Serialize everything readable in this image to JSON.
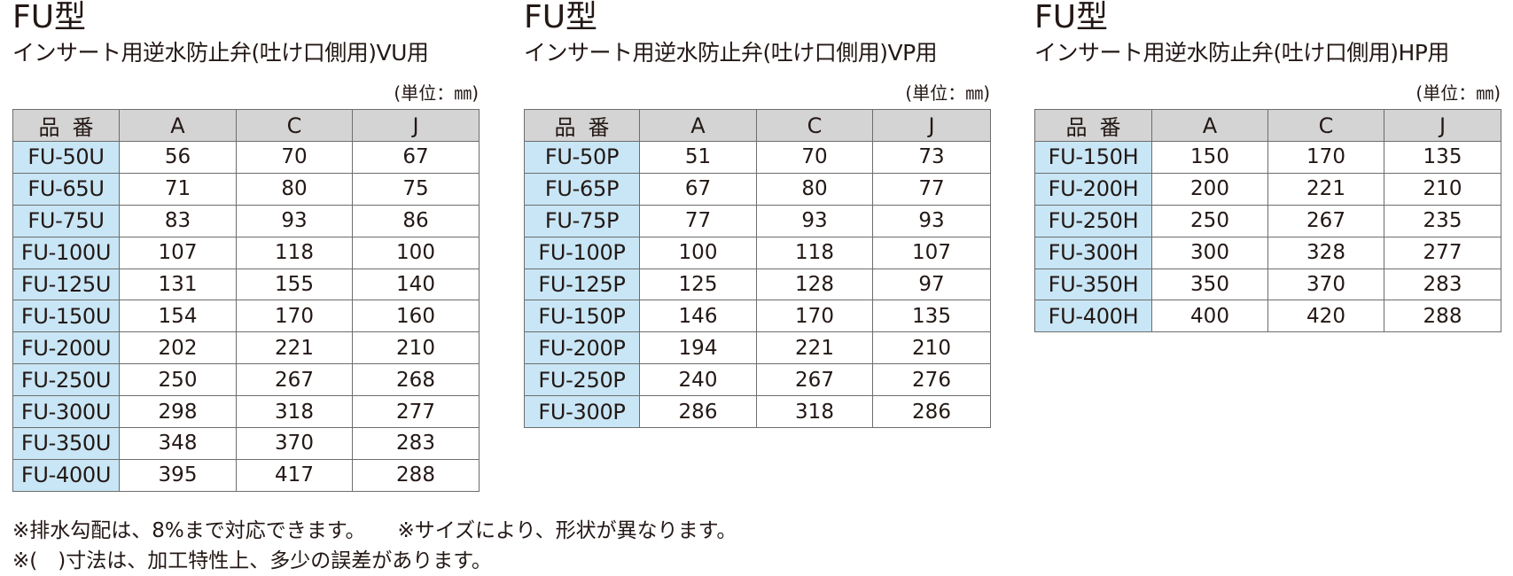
{
  "tables": [
    {
      "title": "FU型",
      "subtitle": "インサート用逆水防止弁(吐け口側用)VU用",
      "unit": "(単位：㎜)",
      "headers": [
        "品番",
        "A",
        "C",
        "J"
      ],
      "rows": [
        [
          "FU-50U",
          "56",
          "70",
          "67"
        ],
        [
          "FU-65U",
          "71",
          "80",
          "75"
        ],
        [
          "FU-75U",
          "83",
          "93",
          "86"
        ],
        [
          "FU-100U",
          "107",
          "118",
          "100"
        ],
        [
          "FU-125U",
          "131",
          "155",
          "140"
        ],
        [
          "FU-150U",
          "154",
          "170",
          "160"
        ],
        [
          "FU-200U",
          "202",
          "221",
          "210"
        ],
        [
          "FU-250U",
          "250",
          "267",
          "268"
        ],
        [
          "FU-300U",
          "298",
          "318",
          "277"
        ],
        [
          "FU-350U",
          "348",
          "370",
          "283"
        ],
        [
          "FU-400U",
          "395",
          "417",
          "288"
        ]
      ]
    },
    {
      "title": "FU型",
      "subtitle": "インサート用逆水防止弁(吐け口側用)VP用",
      "unit": "(単位：㎜)",
      "headers": [
        "品番",
        "A",
        "C",
        "J"
      ],
      "rows": [
        [
          "FU-50P",
          "51",
          "70",
          "73"
        ],
        [
          "FU-65P",
          "67",
          "80",
          "77"
        ],
        [
          "FU-75P",
          "77",
          "93",
          "93"
        ],
        [
          "FU-100P",
          "100",
          "118",
          "107"
        ],
        [
          "FU-125P",
          "125",
          "128",
          "97"
        ],
        [
          "FU-150P",
          "146",
          "170",
          "135"
        ],
        [
          "FU-200P",
          "194",
          "221",
          "210"
        ],
        [
          "FU-250P",
          "240",
          "267",
          "276"
        ],
        [
          "FU-300P",
          "286",
          "318",
          "286"
        ]
      ]
    },
    {
      "title": "FU型",
      "subtitle": "インサート用逆水防止弁(吐け口側用)HP用",
      "unit": "(単位：㎜)",
      "headers": [
        "品番",
        "A",
        "C",
        "J"
      ],
      "rows": [
        [
          "FU-150H",
          "150",
          "170",
          "135"
        ],
        [
          "FU-200H",
          "200",
          "221",
          "210"
        ],
        [
          "FU-250H",
          "250",
          "267",
          "235"
        ],
        [
          "FU-300H",
          "300",
          "328",
          "277"
        ],
        [
          "FU-350H",
          "350",
          "370",
          "283"
        ],
        [
          "FU-400H",
          "400",
          "420",
          "288"
        ]
      ]
    }
  ],
  "notes": {
    "line1_a": "※排水勾配は、8%まで対応できます。",
    "line1_b": "※サイズにより、形状が異なります。",
    "line2": "※(　)寸法は、加工特性上、多少の誤差があります。"
  },
  "colors": {
    "header_bg": "#d4d4d4",
    "part_cell_bg": "#c8e6f5",
    "border": "#6d6d6d",
    "text": "#231815"
  }
}
